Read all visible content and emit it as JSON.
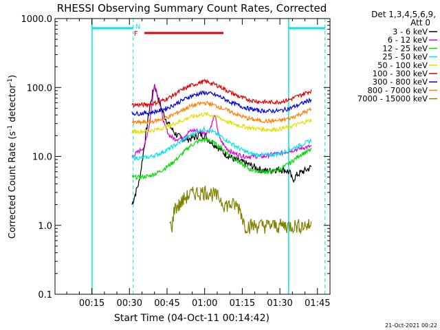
{
  "chart_data": {
    "type": "line",
    "title": "RHESSI Observing Summary Count Rates, Corrected",
    "xlabel": "Start Time (04-Oct-11 00:14:42)",
    "ylabel_main": "Corrected Count Rate (s",
    "ylabel_exp1": "-1",
    "ylabel_mid": " detector",
    "ylabel_exp2": "-1",
    "ylabel_end": ")",
    "y_scale": "log",
    "ylim": [
      0.1,
      1000
    ],
    "xlim_minutes": [
      0.3,
      110.0
    ],
    "x_ticks": [
      {
        "m": 15,
        "label": "00:15"
      },
      {
        "m": 30,
        "label": "00:30"
      },
      {
        "m": 45,
        "label": "00:45"
      },
      {
        "m": 60,
        "label": "01:00"
      },
      {
        "m": 75,
        "label": "01:15"
      },
      {
        "m": 90,
        "label": "01:30"
      },
      {
        "m": 105,
        "label": "01:45"
      }
    ],
    "y_ticks": [
      {
        "v": 0.1,
        "label": "0.1"
      },
      {
        "v": 1,
        "label": "1.0"
      },
      {
        "v": 10,
        "label": "10.0"
      },
      {
        "v": 100,
        "label": "100.0"
      },
      {
        "v": 1000,
        "label": "1000.0"
      }
    ],
    "grid": false,
    "legend_position": "top-right",
    "detector_header": "Det 1,3,4,5,6,9,",
    "attenuator_label": "Att 0",
    "markers": {
      "night_label": "N",
      "flare_label": "F",
      "night_color": "#00e5e5",
      "flare_color": "#e00000",
      "night_solid_times": [
        15.1,
        93.5
      ],
      "night_dashed_times": [
        31.5,
        108.0
      ],
      "night_bars": [
        [
          15.1,
          31.5
        ],
        [
          93.5,
          108.0
        ]
      ],
      "flare_bar": [
        36.0,
        67.5
      ]
    },
    "series": [
      {
        "name": "3 - 6 keV",
        "color": "#000000",
        "x": [
          31.0,
          34,
          36,
          38,
          40,
          42,
          44,
          46,
          48,
          50,
          52,
          54,
          56,
          58,
          60,
          62,
          64,
          66,
          68,
          70,
          72,
          74,
          76,
          78,
          80,
          82,
          84,
          86,
          88,
          90,
          92,
          94,
          95,
          97,
          99,
          101,
          102.5
        ],
        "y": [
          2.0,
          4.5,
          15,
          50,
          110,
          60,
          38,
          28,
          22,
          19,
          18,
          18,
          19,
          21,
          20,
          17,
          15,
          13,
          11,
          10,
          9,
          8.5,
          8,
          7.5,
          7,
          6.5,
          6.2,
          6.2,
          6.5,
          6.5,
          6.4,
          5.8,
          4.5,
          5.5,
          6.0,
          6.5,
          7.0
        ]
      },
      {
        "name": "6 - 12 keV",
        "color": "#e000e0",
        "x": [
          31.0,
          34,
          36,
          38,
          40,
          42,
          44,
          46,
          48,
          50,
          52,
          54,
          56,
          58,
          60,
          62,
          64,
          66,
          68,
          70,
          72,
          74,
          76,
          78,
          80,
          82,
          84,
          86,
          88,
          90,
          92,
          94,
          96,
          98,
          100,
          102.5
        ],
        "y": [
          10,
          12,
          14,
          30,
          115,
          60,
          28,
          20,
          18,
          18,
          20,
          23,
          24,
          23,
          22,
          24,
          40,
          18,
          14,
          12,
          11,
          10.5,
          10,
          10,
          10,
          10,
          10,
          10.5,
          11,
          11,
          11.5,
          12,
          12.5,
          13,
          13.5,
          14
        ]
      },
      {
        "name": "12 - 25 keV",
        "color": "#00e000",
        "x": [
          31.0,
          34,
          38,
          42,
          46,
          50,
          54,
          58,
          60,
          62,
          66,
          70,
          74,
          78,
          82,
          86,
          90,
          94,
          98,
          102.5
        ],
        "y": [
          5.0,
          5.0,
          5.2,
          6.0,
          7.5,
          10,
          14,
          17,
          17.5,
          17,
          14,
          10.5,
          8.0,
          6.5,
          6.0,
          6.0,
          6.5,
          8.0,
          10.5,
          12.5
        ]
      },
      {
        "name": "25 - 50 keV",
        "color": "#00e5e5",
        "x": [
          31.0,
          34,
          38,
          42,
          46,
          50,
          54,
          58,
          60,
          62,
          66,
          70,
          74,
          78,
          82,
          86,
          90,
          94,
          98,
          102.5
        ],
        "y": [
          9.5,
          9.5,
          9.8,
          11,
          13,
          16,
          20,
          24,
          25,
          24,
          20,
          16,
          13,
          11,
          10.5,
          10.5,
          11,
          12.5,
          14.5,
          17
        ]
      },
      {
        "name": "50 - 100 keV",
        "color": "#e0e000",
        "x": [
          31.0,
          34,
          38,
          42,
          46,
          50,
          54,
          58,
          60,
          62,
          66,
          70,
          74,
          78,
          82,
          86,
          90,
          94,
          98,
          102.5
        ],
        "y": [
          23,
          23,
          23.5,
          25,
          28,
          32,
          37,
          40,
          41,
          40,
          36,
          31,
          28,
          26,
          25,
          24.5,
          25,
          27,
          30,
          34
        ]
      },
      {
        "name": "100 - 300 keV",
        "color": "#e00000",
        "x": [
          31.0,
          34,
          38,
          42,
          46,
          50,
          54,
          58,
          60,
          62,
          66,
          70,
          74,
          78,
          82,
          86,
          90,
          94,
          98,
          102.5
        ],
        "y": [
          56,
          56,
          57,
          62,
          72,
          88,
          105,
          118,
          122,
          118,
          104,
          86,
          73,
          66,
          62,
          61,
          62,
          67,
          77,
          90
        ]
      },
      {
        "name": "300 - 800 keV",
        "color": "#0000e0",
        "x": [
          31.0,
          34,
          38,
          42,
          46,
          50,
          54,
          58,
          60,
          62,
          66,
          70,
          74,
          78,
          82,
          86,
          90,
          94,
          98,
          102.5
        ],
        "y": [
          42,
          42,
          43,
          46,
          52,
          62,
          74,
          82,
          84,
          82,
          74,
          62,
          54,
          49,
          46,
          45.5,
          46,
          50,
          57,
          67
        ]
      },
      {
        "name": "800 - 7000 keV",
        "color": "#ff8000",
        "x": [
          31.0,
          34,
          38,
          42,
          46,
          50,
          54,
          58,
          60,
          62,
          66,
          70,
          74,
          78,
          82,
          86,
          90,
          94,
          98,
          102.5
        ],
        "y": [
          31,
          31,
          31.5,
          34,
          38,
          45,
          53,
          58,
          60,
          58,
          52,
          45,
          39,
          35,
          33,
          32.5,
          33,
          36,
          41,
          48
        ]
      },
      {
        "name": "7000 - 15000 keV",
        "color": "#808000",
        "x": [
          46.0,
          47,
          48,
          50,
          52,
          54,
          56,
          58,
          60,
          62,
          64,
          66,
          68,
          70,
          72,
          74,
          76,
          78,
          80,
          82,
          84,
          86,
          88,
          90,
          92,
          94,
          96,
          98,
          100,
          102.5
        ],
        "y": [
          1.0,
          1.0,
          1.8,
          2.0,
          2.5,
          2.8,
          3.0,
          3.0,
          3.1,
          3.0,
          2.8,
          2.5,
          2.0,
          2.0,
          2.0,
          1.8,
          1.0,
          1.0,
          1.0,
          1.0,
          1.0,
          1.0,
          1.0,
          1.0,
          1.0,
          1.0,
          1.0,
          1.0,
          1.0,
          1.0
        ]
      }
    ]
  },
  "footer_date": "21-Oct-2021 00:22"
}
